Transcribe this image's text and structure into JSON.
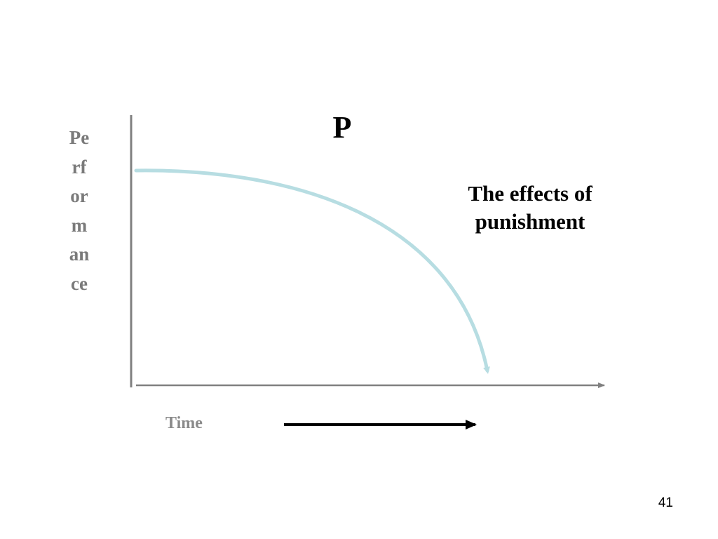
{
  "title": "P",
  "annotation": "The effects of punishment",
  "y_axis_label": "Performance",
  "x_axis_label": "Time",
  "slide_number": "41",
  "colors": {
    "axis": "#808080",
    "curve": "#b7dde2",
    "time_arrow": "#000000",
    "axis_label": "#7a7a7a"
  }
}
